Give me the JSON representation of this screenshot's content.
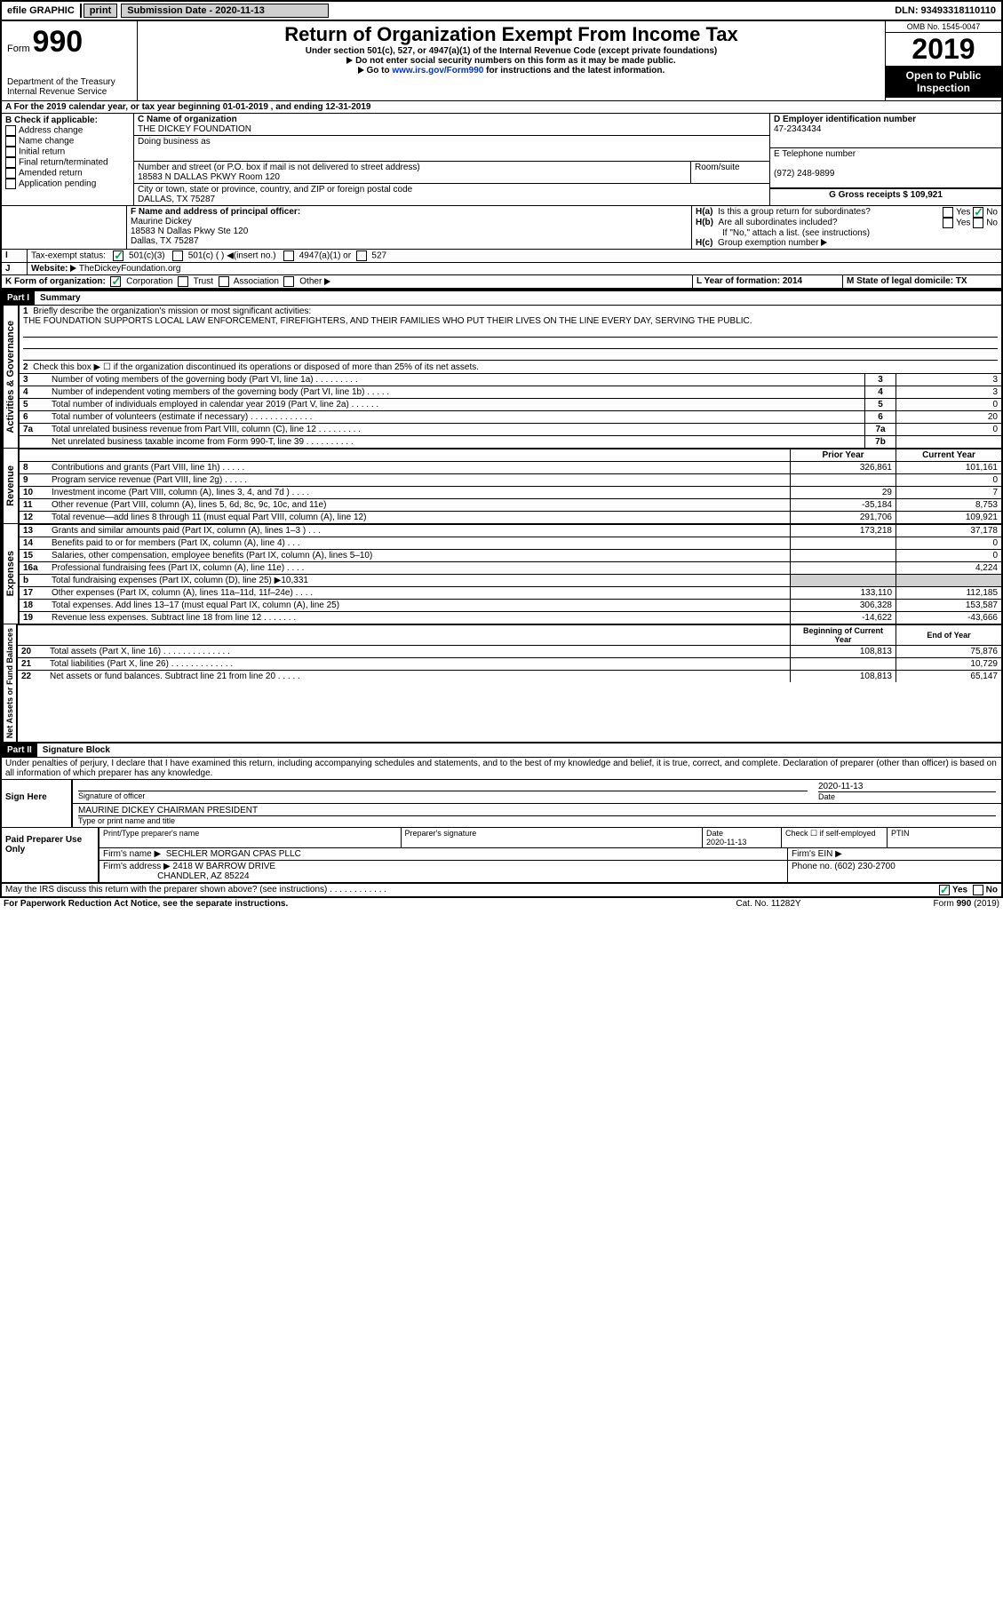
{
  "topbar": {
    "efile": "efile GRAPHIC",
    "print": "print",
    "subdate_lbl": "Submission Date - 2020-11-13",
    "dln": "DLN: 93493318110110"
  },
  "header": {
    "form_word": "Form",
    "form_num": "990",
    "dept1": "Department of the Treasury",
    "dept2": "Internal Revenue Service",
    "title": "Return of Organization Exempt From Income Tax",
    "sub1": "Under section 501(c), 527, or 4947(a)(1) of the Internal Revenue Code (except private foundations)",
    "sub2": "Do not enter social security numbers on this form as it may be made public.",
    "sub3a": "Go to ",
    "sub3_link": "www.irs.gov/Form990",
    "sub3b": " for instructions and the latest information.",
    "omb": "OMB No. 1545-0047",
    "year": "2019",
    "open": "Open to Public Inspection"
  },
  "periodA": {
    "text": "For the 2019 calendar year, or tax year beginning 01-01-2019   , and ending 12-31-2019"
  },
  "boxB": {
    "label": "B Check if applicable:",
    "addr": "Address change",
    "name": "Name change",
    "init": "Initial return",
    "final": "Final return/terminated",
    "amend": "Amended return",
    "app": "Application pending"
  },
  "boxC": {
    "label": "C Name of organization",
    "org": "THE DICKEY FOUNDATION",
    "dba_lbl": "Doing business as",
    "street_lbl": "Number and street (or P.O. box if mail is not delivered to street address)",
    "room_lbl": "Room/suite",
    "street": "18583 N DALLAS PKWY Room 120",
    "city_lbl": "City or town, state or province, country, and ZIP or foreign postal code",
    "city": "DALLAS, TX  75287"
  },
  "boxD": {
    "label": "D Employer identification number",
    "val": "47-2343434"
  },
  "boxE": {
    "label": "E Telephone number",
    "val": "(972) 248-9899"
  },
  "boxG": {
    "label": "G Gross receipts $ 109,921"
  },
  "boxF": {
    "label": "F Name and address of principal officer:",
    "name": "Maurine Dickey",
    "street": "18583 N Dallas Pkwy Ste 120",
    "city": "Dallas, TX  75287"
  },
  "boxH": {
    "a": "H(a)  Is this a group return for subordinates?",
    "b": "H(b)  Are all subordinates included?",
    "note": "If \"No,\" attach a list. (see instructions)",
    "c": "H(c)  Group exemption number ",
    "yes": "Yes",
    "no": "No"
  },
  "boxI": {
    "label": "Tax-exempt status:",
    "c3": "501(c)(3)",
    "c": "501(c) (  )",
    "insert": "(insert no.)",
    "a1": "4947(a)(1) or",
    "s527": "527"
  },
  "boxJ": {
    "label": "Website: ",
    "val": "TheDickeyFoundation.org"
  },
  "boxK": {
    "label": "K Form of organization:",
    "corp": "Corporation",
    "trust": "Trust",
    "assoc": "Association",
    "other": "Other"
  },
  "boxL": {
    "label": "L Year of formation: 2014"
  },
  "boxM": {
    "label": "M State of legal domicile: TX"
  },
  "part1": {
    "num": "Part I",
    "title": "Summary"
  },
  "summary": {
    "l1": "Briefly describe the organization's mission or most significant activities:",
    "mission": "THE FOUNDATION SUPPORTS LOCAL LAW ENFORCEMENT, FIREFIGHTERS, AND THEIR FAMILIES WHO PUT THEIR LIVES ON THE LINE EVERY DAY, SERVING THE PUBLIC.",
    "l2": "Check this box ▶ ☐  if the organization discontinued its operations or disposed of more than 25% of its net assets.",
    "rows_top": [
      {
        "n": "3",
        "t": "Number of voting members of the governing body (Part VI, line 1a)   .    .    .    .    .    .    .    .    .",
        "box": "3",
        "v": "3"
      },
      {
        "n": "4",
        "t": "Number of independent voting members of the governing body (Part VI, line 1b)   .    .    .    .    .",
        "box": "4",
        "v": "3"
      },
      {
        "n": "5",
        "t": "Total number of individuals employed in calendar year 2019 (Part V, line 2a)   .    .    .    .    .    .",
        "box": "5",
        "v": "0"
      },
      {
        "n": "6",
        "t": "Total number of volunteers (estimate if necessary)    .    .    .    .    .    .    .    .    .    .    .    .    .",
        "box": "6",
        "v": "20"
      },
      {
        "n": "7a",
        "t": "Total unrelated business revenue from Part VIII, column (C), line 12   .    .    .    .    .    .    .    .    .",
        "box": "7a",
        "v": "0"
      },
      {
        "n": "",
        "t": "Net unrelated business taxable income from Form 990-T, line 39   .    .    .    .    .    .    .    .    .    .",
        "box": "7b",
        "v": ""
      }
    ],
    "py": "Prior Year",
    "cy": "Current Year",
    "rev": [
      {
        "n": "8",
        "t": "Contributions and grants (Part VIII, line 1h)    .    .    .    .    .",
        "p": "326,861",
        "c": "101,161"
      },
      {
        "n": "9",
        "t": "Program service revenue (Part VIII, line 2g)    .    .    .    .    .",
        "p": "",
        "c": "0"
      },
      {
        "n": "10",
        "t": "Investment income (Part VIII, column (A), lines 3, 4, and 7d )    .    .    .    .",
        "p": "29",
        "c": "7"
      },
      {
        "n": "11",
        "t": "Other revenue (Part VIII, column (A), lines 5, 6d, 8c, 9c, 10c, and 11e)",
        "p": "-35,184",
        "c": "8,753"
      },
      {
        "n": "12",
        "t": "Total revenue—add lines 8 through 11 (must equal Part VIII, column (A), line 12)",
        "p": "291,706",
        "c": "109,921"
      }
    ],
    "exp": [
      {
        "n": "13",
        "t": "Grants and similar amounts paid (Part IX, column (A), lines 1–3 )   .    .    .",
        "p": "173,218",
        "c": "37,178"
      },
      {
        "n": "14",
        "t": "Benefits paid to or for members (Part IX, column (A), line 4)   .    .    .",
        "p": "",
        "c": "0"
      },
      {
        "n": "15",
        "t": "Salaries, other compensation, employee benefits (Part IX, column (A), lines 5–10)",
        "p": "",
        "c": "0"
      },
      {
        "n": "16a",
        "t": "Professional fundraising fees (Part IX, column (A), line 11e)   .    .    .    .",
        "p": "",
        "c": "4,224"
      },
      {
        "n": "b",
        "t": "Total fundraising expenses (Part IX, column (D), line 25) ▶10,331",
        "p": "__shade__",
        "c": "__shade__"
      },
      {
        "n": "17",
        "t": "Other expenses (Part IX, column (A), lines 11a–11d, 11f–24e)   .    .    .    .",
        "p": "133,110",
        "c": "112,185"
      },
      {
        "n": "18",
        "t": "Total expenses. Add lines 13–17 (must equal Part IX, column (A), line 25)",
        "p": "306,328",
        "c": "153,587"
      },
      {
        "n": "19",
        "t": "Revenue less expenses. Subtract line 18 from line 12   .    .    .    .    .    .    .",
        "p": "-14,622",
        "c": "-43,666"
      }
    ],
    "bcy": "Beginning of Current Year",
    "eoy": "End of Year",
    "net": [
      {
        "n": "20",
        "t": "Total assets (Part X, line 16)   .    .    .    .    .    .    .    .    .    .    .    .    .    .",
        "p": "108,813",
        "c": "75,876"
      },
      {
        "n": "21",
        "t": "Total liabilities (Part X, line 26)   .    .    .    .    .    .    .    .    .    .    .    .    .",
        "p": "",
        "c": "10,729"
      },
      {
        "n": "22",
        "t": "Net assets or fund balances. Subtract line 21 from line 20   .    .    .    .    .",
        "p": "108,813",
        "c": "65,147"
      }
    ],
    "side_act": "Activities & Governance",
    "side_rev": "Revenue",
    "side_exp": "Expenses",
    "side_net": "Net Assets or Fund Balances"
  },
  "part2": {
    "num": "Part II",
    "title": "Signature Block"
  },
  "sig": {
    "decl": "Under penalties of perjury, I declare that I have examined this return, including accompanying schedules and statements, and to the best of my knowledge and belief, it is true, correct, and complete. Declaration of preparer (other than officer) is based on all information of which preparer has any knowledge.",
    "here": "Sign Here",
    "off_lbl": "Signature of officer",
    "date_lbl": "Date",
    "date": "2020-11-13",
    "name": "MAURINE DICKEY CHAIRMAN PRESIDENT",
    "name_lbl": "Type or print name and title",
    "paid": "Paid Preparer Use Only",
    "pprep": "Print/Type preparer's name",
    "psig": "Preparer's signature",
    "pdate_lbl": "Date",
    "pdate": "2020-11-13",
    "pself_lbl": "Check ☐ if self-employed",
    "ptin": "PTIN",
    "firm_lbl": "Firm's name   ▶",
    "firm": "SECHLER MORGAN CPAS PLLC",
    "ein_lbl": "Firm's EIN ▶",
    "addr_lbl": "Firm's address ▶",
    "addr1": "2418 W BARROW DRIVE",
    "addr2": "CHANDLER, AZ  85224",
    "phone_lbl": "Phone no. (602) 230-2700",
    "discuss": "May the IRS discuss this return with the preparer shown above? (see instructions)    .    .    .    .    .    .    .    .    .    .    .    .",
    "yes": "Yes",
    "no": "No"
  },
  "footer": {
    "pra": "For Paperwork Reduction Act Notice, see the separate instructions.",
    "cat": "Cat. No. 11282Y",
    "form": "Form 990 (2019)"
  },
  "colors": {
    "link": "#0033cc",
    "check": "#00aa55",
    "shade": "#d0d0d0"
  }
}
